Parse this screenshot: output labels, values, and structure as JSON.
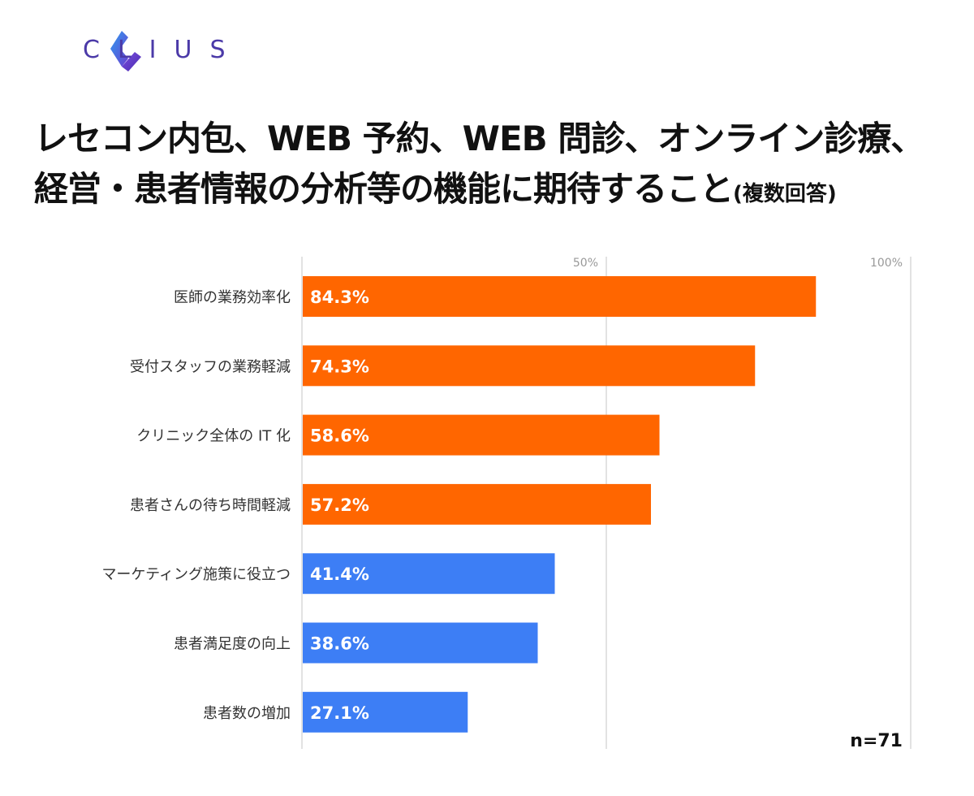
{
  "brand": {
    "name": "CLIUS",
    "color": "#4b3aa8"
  },
  "title": {
    "line1": "レセコン内包、WEB 予約、WEB 問診、オンライン診療、",
    "line2": "経営・患者情報の分析等の機能に期待すること",
    "note": "(複数回答)"
  },
  "sample_size": "n=71",
  "colors": {
    "highlight": "#ff6600",
    "normal": "#3d7ef5",
    "grid": "#d9d9d9",
    "tick_text": "#999999"
  },
  "chart_data": {
    "type": "bar",
    "orientation": "horizontal",
    "categories": [
      "医師の業務効率化",
      "受付スタッフの業務軽減",
      "クリニック全体の IT 化",
      "患者さんの待ち時間軽減",
      "マーケティング施策に役立つ",
      "患者満足度の向上",
      "患者数の増加"
    ],
    "values": [
      84.3,
      74.3,
      58.6,
      57.2,
      41.4,
      38.6,
      27.1
    ],
    "value_labels": [
      "84.3%",
      "74.3%",
      "58.6%",
      "57.2%",
      "41.4%",
      "38.6%",
      "27.1%"
    ],
    "bar_colors": [
      "#ff6600",
      "#ff6600",
      "#ff6600",
      "#ff6600",
      "#3d7ef5",
      "#3d7ef5",
      "#3d7ef5"
    ],
    "xlim": [
      0,
      100
    ],
    "x_ticks": [
      {
        "value": 50,
        "label": "50%"
      },
      {
        "value": 100,
        "label": "100%"
      }
    ],
    "grid": true
  }
}
